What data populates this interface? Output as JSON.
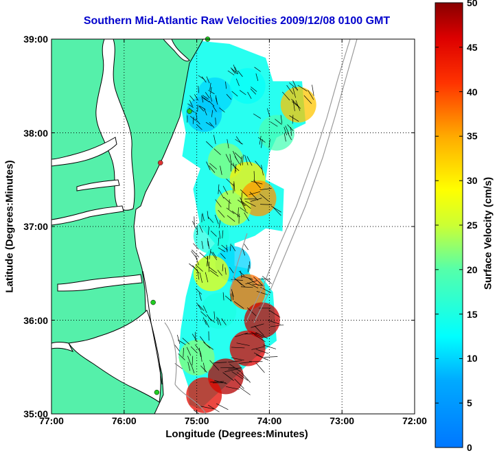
{
  "title": "Southern Mid-Atlantic Raw Velocities 2009/12/08 0100 GMT",
  "xlabel": "Longitude (Degrees:Minutes)",
  "ylabel": "Latitude (Degrees:Minutes)",
  "colorbar": {
    "label": "Surface Velocity (cm/s)",
    "ticks": [
      "0",
      "5",
      "10",
      "15",
      "20",
      "25",
      "30",
      "35",
      "40",
      "45",
      "50"
    ],
    "range": [
      0,
      50
    ]
  },
  "x_ticks": [
    "77:00",
    "76:00",
    "75:00",
    "74:00",
    "73:00",
    "72:00"
  ],
  "y_ticks": [
    "39:00",
    "38:00",
    "37:00",
    "36:00",
    "35:00"
  ],
  "colors": {
    "title": "#0000cc",
    "land": "#55f0aa",
    "coastline": "#000000",
    "bathymetry": "#999999",
    "site_active": "#22cc22",
    "site_inactive": "#dd3333"
  },
  "chart_data": {
    "type": "heatmap",
    "title": "Southern Mid-Atlantic Raw Velocities 2009/12/08 0100 GMT",
    "xlabel": "Longitude (Degrees:Minutes)",
    "ylabel": "Latitude (Degrees:Minutes)",
    "xlim": [
      -77,
      -72
    ],
    "ylim": [
      35,
      39
    ],
    "grid": true,
    "colorbar_label": "Surface Velocity (cm/s)",
    "colorbar_range": [
      0,
      50
    ],
    "regions": [
      {
        "lon": -74.75,
        "lat": 38.4,
        "speed": 10
      },
      {
        "lon": -74.3,
        "lat": 38.5,
        "speed": 13
      },
      {
        "lon": -74.9,
        "lat": 38.2,
        "speed": 9
      },
      {
        "lon": -73.9,
        "lat": 38.0,
        "speed": 19
      },
      {
        "lon": -73.6,
        "lat": 38.3,
        "speed": 33
      },
      {
        "lon": -74.6,
        "lat": 37.7,
        "speed": 22
      },
      {
        "lon": -74.3,
        "lat": 37.5,
        "speed": 30
      },
      {
        "lon": -74.15,
        "lat": 37.3,
        "speed": 36
      },
      {
        "lon": -74.5,
        "lat": 37.2,
        "speed": 25
      },
      {
        "lon": -74.8,
        "lat": 36.9,
        "speed": 15
      },
      {
        "lon": -74.5,
        "lat": 36.6,
        "speed": 10
      },
      {
        "lon": -74.8,
        "lat": 36.5,
        "speed": 28
      },
      {
        "lon": -74.7,
        "lat": 36.1,
        "speed": 15
      },
      {
        "lon": -74.3,
        "lat": 36.3,
        "speed": 38
      },
      {
        "lon": -74.1,
        "lat": 36.0,
        "speed": 47
      },
      {
        "lon": -74.3,
        "lat": 35.7,
        "speed": 46
      },
      {
        "lon": -74.6,
        "lat": 35.4,
        "speed": 48
      },
      {
        "lon": -74.9,
        "lat": 35.2,
        "speed": 45
      },
      {
        "lon": -75.0,
        "lat": 35.6,
        "speed": 22
      }
    ],
    "sites": [
      {
        "lon": -74.85,
        "lat": 39.0,
        "status": "active"
      },
      {
        "lon": -75.1,
        "lat": 38.23,
        "status": "active"
      },
      {
        "lon": -75.5,
        "lat": 37.68,
        "status": "inactive"
      },
      {
        "lon": -75.6,
        "lat": 36.19,
        "status": "active"
      },
      {
        "lon": -75.55,
        "lat": 35.23,
        "status": "active"
      }
    ]
  }
}
